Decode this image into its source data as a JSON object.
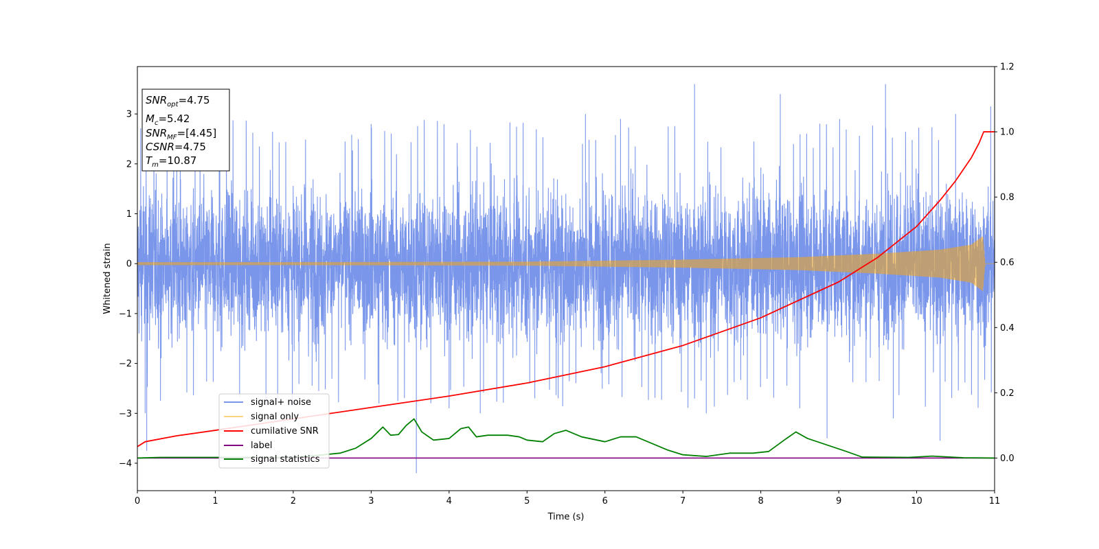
{
  "chart_data": {
    "type": "line",
    "title": "",
    "xlabel": "Time (s)",
    "ylabel": "Whitened strain",
    "xlim": [
      0,
      11
    ],
    "ylim_left": [
      -4.55,
      3.95
    ],
    "ylim_right": [
      -0.1,
      1.2
    ],
    "x_ticks": [
      "0",
      "1",
      "2",
      "3",
      "4",
      "5",
      "6",
      "7",
      "8",
      "9",
      "10",
      "11"
    ],
    "y_left_ticks": [
      "−4",
      "−3",
      "−2",
      "−1",
      "0",
      "1",
      "2",
      "3"
    ],
    "y_left_tick_values": [
      -4,
      -3,
      -2,
      -1,
      0,
      1,
      2,
      3
    ],
    "y_right_ticks": [
      "0.0",
      "0.2",
      "0.4",
      "0.6",
      "0.8",
      "1.0",
      "1.2"
    ],
    "y_right_tick_values": [
      0.0,
      0.2,
      0.4,
      0.6,
      0.8,
      1.0,
      1.2
    ],
    "grid": false,
    "legend_placement": "lower-left",
    "annotation": {
      "snr_opt_value": "4.75",
      "mc_value": "5.42",
      "snr_mf_value": "[4.45]",
      "csnr_value": "4.75",
      "tm_value": "10.87"
    },
    "series": [
      {
        "name": "signal+ noise",
        "axis": "left",
        "color": "#4169e1",
        "description_style": "dense noise",
        "typical_range": [
          -1.9,
          1.9
        ],
        "spike_times": [
          0.1,
          0.12,
          1.05,
          1.8,
          3.0,
          3.1,
          3.58,
          4.0,
          4.4,
          5.1,
          5.4,
          5.75,
          6.2,
          7.15,
          7.3,
          8.25,
          8.5,
          8.85,
          9.6,
          9.7,
          10.3,
          10.5,
          10.95
        ],
        "spike_values": [
          -3.0,
          -3.75,
          2.2,
          -2.8,
          2.8,
          -2.8,
          -4.2,
          -2.9,
          -3.0,
          -2.7,
          -2.7,
          3.0,
          2.9,
          3.6,
          -3.0,
          3.4,
          -2.9,
          -3.5,
          3.6,
          -3.1,
          -3.55,
          3.0,
          3.15
        ]
      },
      {
        "name": "signal only",
        "axis": "left",
        "color": "#ffa500",
        "amplitude_points": [
          [
            0,
            0.03
          ],
          [
            2,
            0.03
          ],
          [
            5,
            0.04
          ],
          [
            7,
            0.08
          ],
          [
            8.5,
            0.13
          ],
          [
            9.5,
            0.2
          ],
          [
            10.3,
            0.28
          ],
          [
            10.7,
            0.38
          ],
          [
            10.85,
            0.55
          ],
          [
            10.88,
            0
          ]
        ]
      },
      {
        "name": "cumilative SNR",
        "axis": "right",
        "color": "#ff0000",
        "points": [
          [
            0,
            0.035
          ],
          [
            0.1,
            0.05
          ],
          [
            0.5,
            0.068
          ],
          [
            1,
            0.085
          ],
          [
            2,
            0.12
          ],
          [
            3,
            0.155
          ],
          [
            4,
            0.19
          ],
          [
            5,
            0.23
          ],
          [
            6,
            0.28
          ],
          [
            7,
            0.345
          ],
          [
            8,
            0.43
          ],
          [
            9,
            0.54
          ],
          [
            9.5,
            0.615
          ],
          [
            10,
            0.71
          ],
          [
            10.3,
            0.79
          ],
          [
            10.5,
            0.85
          ],
          [
            10.7,
            0.92
          ],
          [
            10.8,
            0.965
          ],
          [
            10.86,
            1.0
          ],
          [
            11,
            1.0
          ]
        ]
      },
      {
        "name": "label",
        "axis": "right",
        "color": "#800080",
        "points": [
          [
            0,
            0.0
          ],
          [
            11,
            0.0
          ]
        ]
      },
      {
        "name": "signal statistics",
        "axis": "right",
        "color": "#008000",
        "points": [
          [
            0,
            0.0
          ],
          [
            0.3,
            0.002
          ],
          [
            2,
            0.002
          ],
          [
            2.3,
            0.008
          ],
          [
            2.6,
            0.015
          ],
          [
            2.8,
            0.03
          ],
          [
            3.0,
            0.06
          ],
          [
            3.15,
            0.095
          ],
          [
            3.25,
            0.07
          ],
          [
            3.35,
            0.072
          ],
          [
            3.45,
            0.1
          ],
          [
            3.55,
            0.12
          ],
          [
            3.65,
            0.08
          ],
          [
            3.8,
            0.055
          ],
          [
            4.0,
            0.06
          ],
          [
            4.15,
            0.09
          ],
          [
            4.25,
            0.095
          ],
          [
            4.35,
            0.065
          ],
          [
            4.5,
            0.07
          ],
          [
            4.75,
            0.07
          ],
          [
            4.9,
            0.065
          ],
          [
            5.0,
            0.055
          ],
          [
            5.2,
            0.05
          ],
          [
            5.35,
            0.075
          ],
          [
            5.5,
            0.085
          ],
          [
            5.7,
            0.065
          ],
          [
            6.0,
            0.05
          ],
          [
            6.2,
            0.065
          ],
          [
            6.4,
            0.065
          ],
          [
            6.6,
            0.045
          ],
          [
            6.8,
            0.025
          ],
          [
            7.0,
            0.01
          ],
          [
            7.3,
            0.005
          ],
          [
            7.6,
            0.015
          ],
          [
            7.9,
            0.015
          ],
          [
            8.1,
            0.02
          ],
          [
            8.3,
            0.055
          ],
          [
            8.45,
            0.08
          ],
          [
            8.6,
            0.06
          ],
          [
            8.85,
            0.04
          ],
          [
            9.1,
            0.02
          ],
          [
            9.3,
            0.003
          ],
          [
            9.9,
            0.002
          ],
          [
            10.2,
            0.006
          ],
          [
            10.6,
            0.001
          ],
          [
            11,
            0.0
          ]
        ]
      }
    ]
  }
}
